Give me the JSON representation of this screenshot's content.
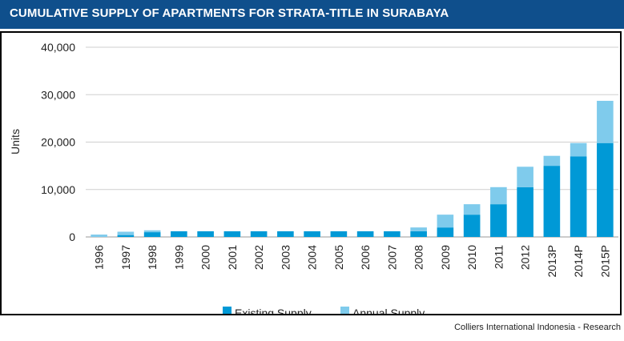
{
  "header": {
    "title": "CUMULATIVE SUPPLY OF APARTMENTS FOR STRATA-TITLE IN SURABAYA"
  },
  "footer": {
    "source": "Colliers International Indonesia - Research"
  },
  "colors": {
    "header_bg": "#0f4f8c",
    "existing": "#0099d6",
    "annual": "#7fcbec",
    "grid": "#cfcfcf"
  },
  "chart_data": {
    "type": "bar",
    "stacked": true,
    "title": "CUMULATIVE SUPPLY OF APARTMENTS FOR STRATA-TITLE IN SURABAYA",
    "xlabel": "",
    "ylabel": "Units",
    "ylim": [
      0,
      40000
    ],
    "yticks": [
      0,
      10000,
      20000,
      30000,
      40000
    ],
    "ytick_labels": [
      "0",
      "10,000",
      "20,000",
      "30,000",
      "40,000"
    ],
    "grid": "horizontal",
    "legend_position": "bottom",
    "categories": [
      "1996",
      "1997",
      "1998",
      "1999",
      "2000",
      "2001",
      "2002",
      "2003",
      "2004",
      "2005",
      "2006",
      "2007",
      "2008",
      "2009",
      "2010",
      "2011",
      "2012",
      "2013P",
      "2014P",
      "2015P"
    ],
    "series": [
      {
        "name": "Existing Supply",
        "values": [
          0,
          400,
          1000,
          1200,
          1200,
          1200,
          1200,
          1200,
          1200,
          1200,
          1200,
          1200,
          1200,
          2000,
          4700,
          6900,
          10500,
          15000,
          17000,
          19800
        ]
      },
      {
        "name": "Annual Supply",
        "values": [
          500,
          700,
          400,
          0,
          0,
          0,
          0,
          0,
          0,
          0,
          0,
          0,
          800,
          2700,
          2200,
          3600,
          4300,
          2100,
          2800,
          8900
        ]
      }
    ]
  }
}
